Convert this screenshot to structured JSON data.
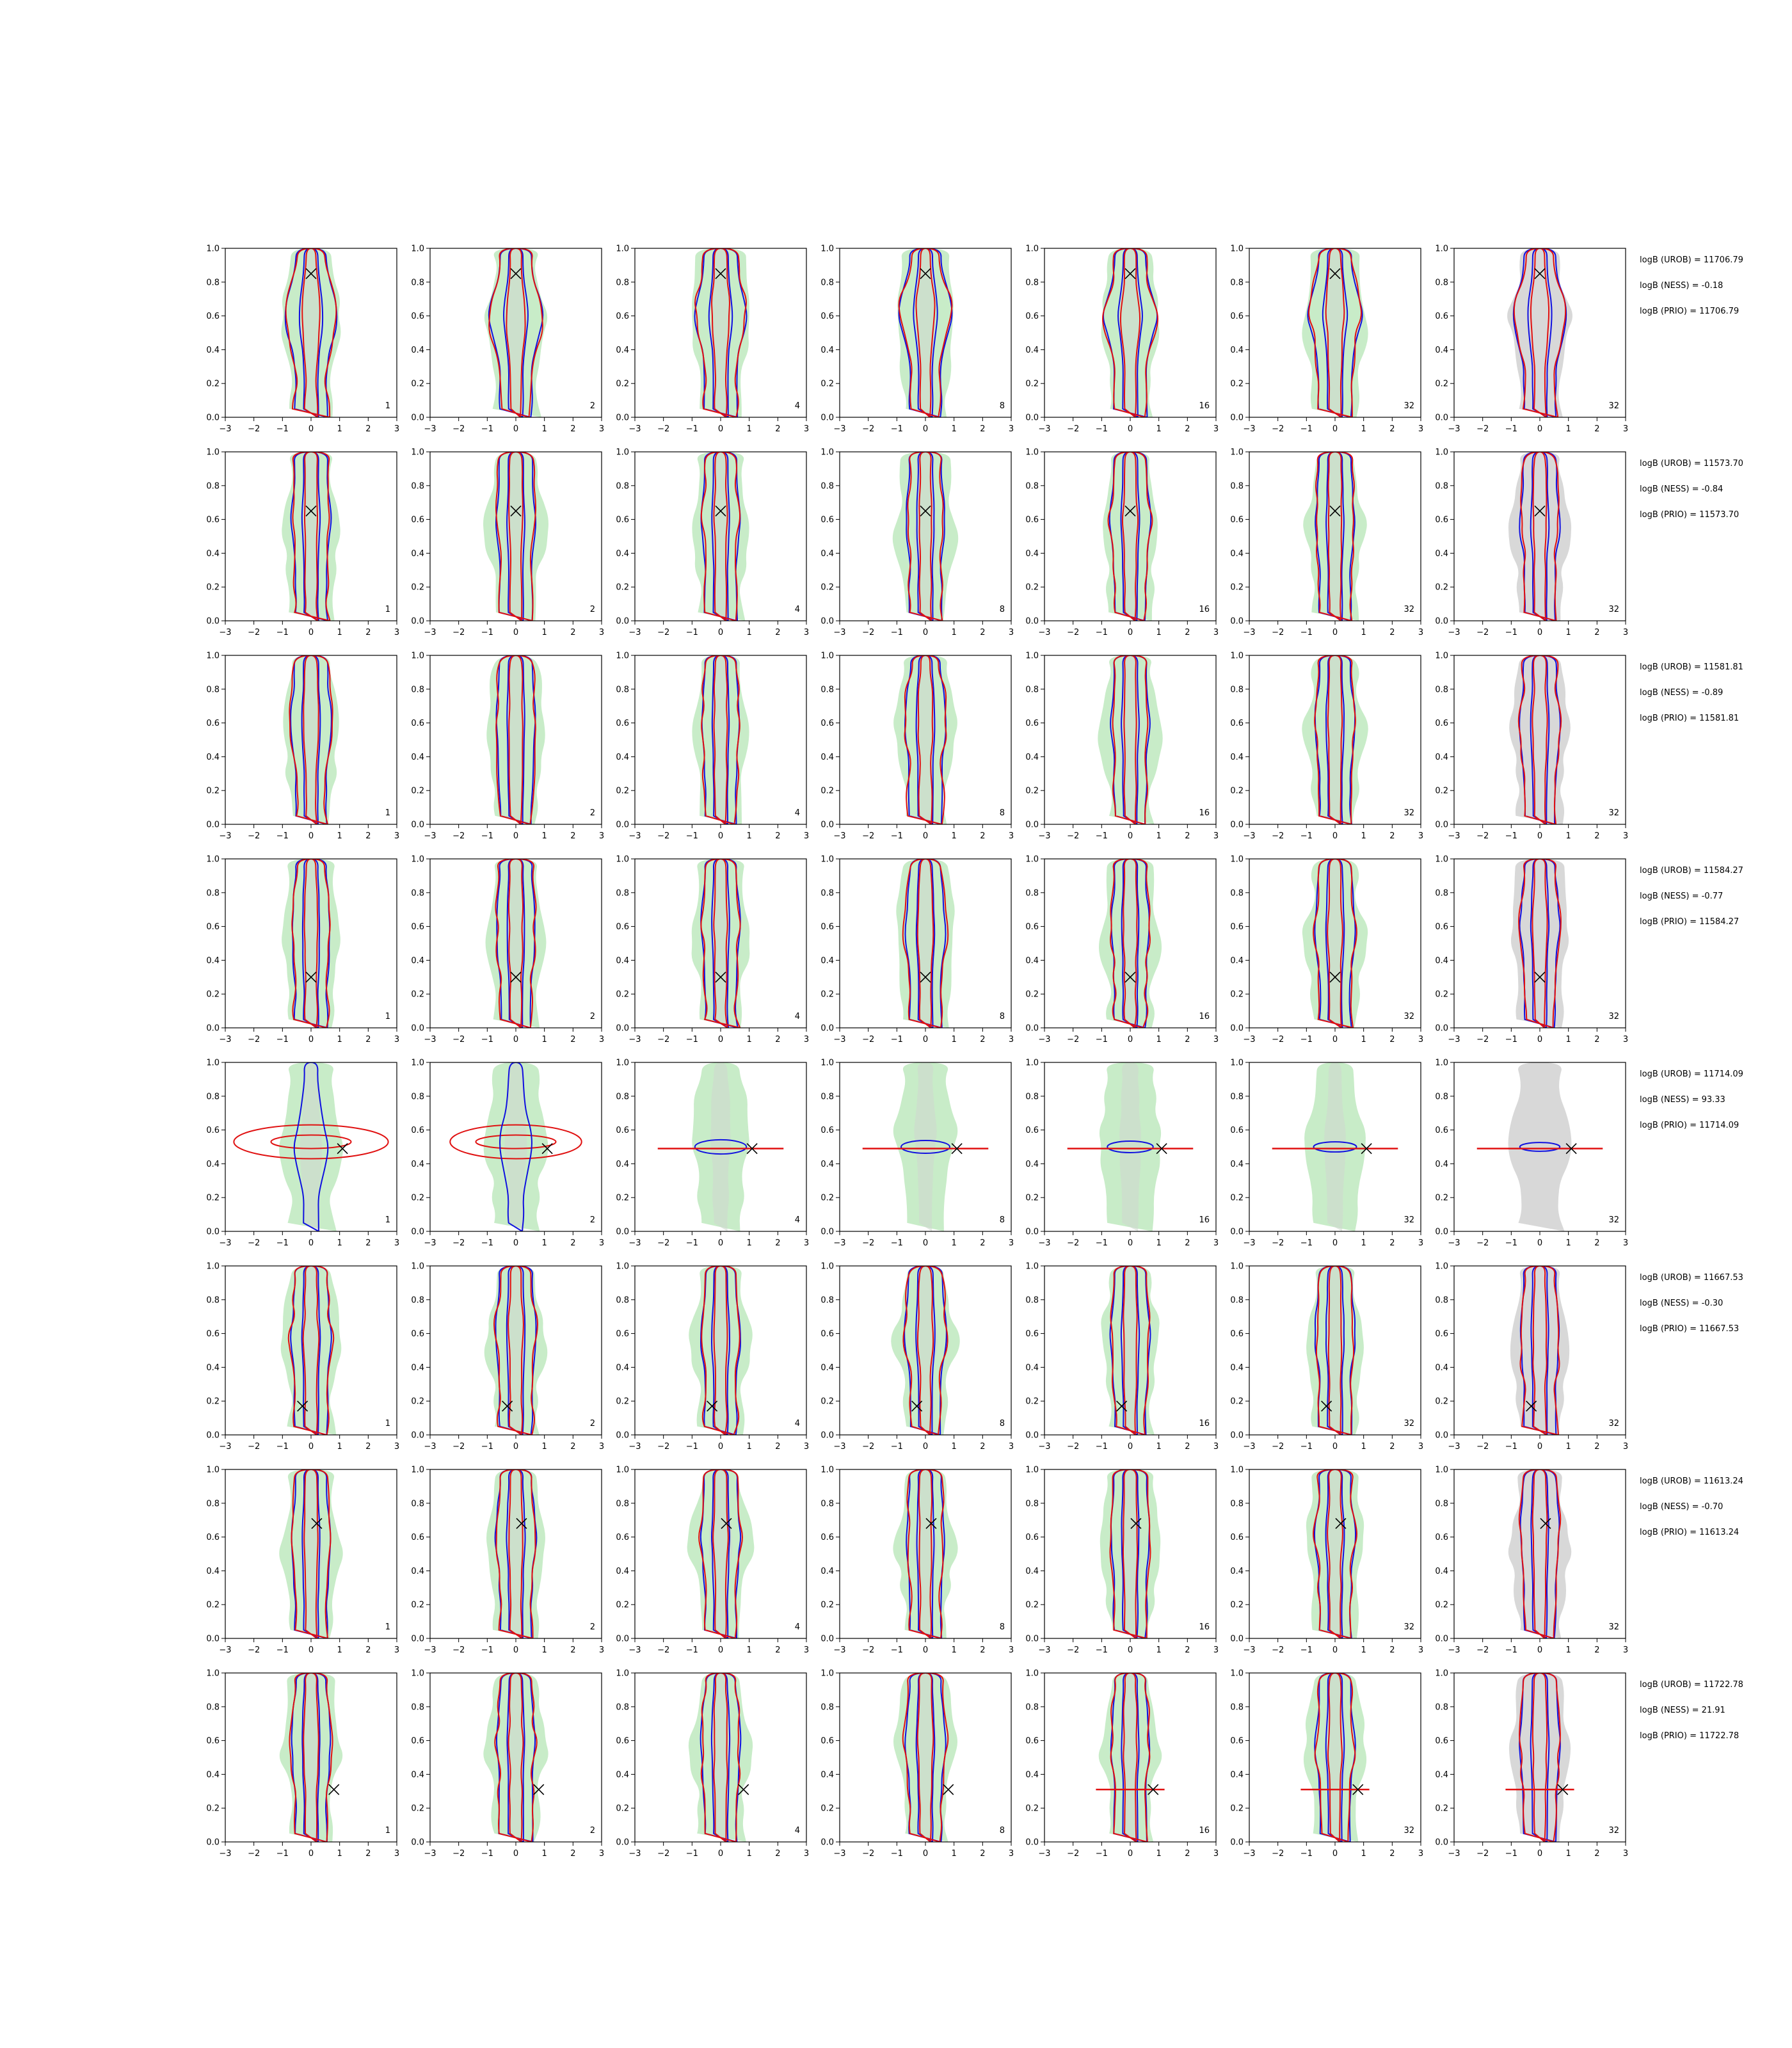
{
  "chart_data": {
    "type": "contour-grid",
    "axes": {
      "xlim": [
        -3,
        3
      ],
      "ylim": [
        0.0,
        1.0
      ],
      "xticks": [
        "−3",
        "−2",
        "−1",
        "0",
        "1",
        "2",
        "3"
      ],
      "yticks": [
        "0.0",
        "0.2",
        "0.4",
        "0.6",
        "0.8",
        "1.0"
      ]
    },
    "series_colors": {
      "reference": "#c8ecc8",
      "prior_fill": "#d8d8d8",
      "blue": "#1010e0",
      "red": "#e01010",
      "marker": "#000000"
    },
    "column_counts": [
      "1",
      "2",
      "4",
      "8",
      "16",
      "32",
      "32"
    ],
    "rows": [
      {
        "marker": {
          "x": 0.0,
          "y": 0.85
        },
        "logB_UROB": "logB (UROB) = 11706.79",
        "logB_NESS": "logB (NESS) = -0.18",
        "logB_PRIO": "logB (PRIO) = 11706.79",
        "style": "wide-top"
      },
      {
        "marker": {
          "x": 0.0,
          "y": 0.65
        },
        "logB_UROB": "logB (UROB) = 11573.70",
        "logB_NESS": "logB (NESS) = -0.84",
        "logB_PRIO": "logB (PRIO) = 11573.70",
        "style": "narrow"
      },
      {
        "marker": null,
        "logB_UROB": "logB (UROB) = 11581.81",
        "logB_NESS": "logB (NESS) = -0.89",
        "logB_PRIO": "logB (PRIO) = 11581.81",
        "style": "narrow"
      },
      {
        "marker": {
          "x": 0.0,
          "y": 0.3
        },
        "logB_UROB": "logB (UROB) = 11584.27",
        "logB_NESS": "logB (NESS) = -0.77",
        "logB_PRIO": "logB (PRIO) = 11584.27",
        "style": "narrow"
      },
      {
        "marker": {
          "x": 1.1,
          "y": 0.49
        },
        "logB_UROB": "logB (UROB) = 11714.09",
        "logB_NESS": "logB (NESS) = 93.33",
        "logB_PRIO": "logB (PRIO) = 11714.09",
        "style": "horizontal"
      },
      {
        "marker": {
          "x": -0.3,
          "y": 0.17
        },
        "logB_UROB": "logB (UROB) = 11667.53",
        "logB_NESS": "logB (NESS) = -0.30",
        "logB_PRIO": "logB (PRIO) = 11667.53",
        "style": "narrow"
      },
      {
        "marker": {
          "x": 0.2,
          "y": 0.68
        },
        "logB_UROB": "logB (UROB) = 11613.24",
        "logB_NESS": "logB (NESS) = -0.70",
        "logB_PRIO": "logB (PRIO) = 11613.24",
        "style": "narrow"
      },
      {
        "marker": {
          "x": 0.8,
          "y": 0.31
        },
        "logB_UROB": "logB (UROB) = 11722.78",
        "logB_NESS": "logB (NESS) = 21.91",
        "logB_PRIO": "logB (PRIO) = 11722.78",
        "style": "mixed"
      }
    ]
  }
}
